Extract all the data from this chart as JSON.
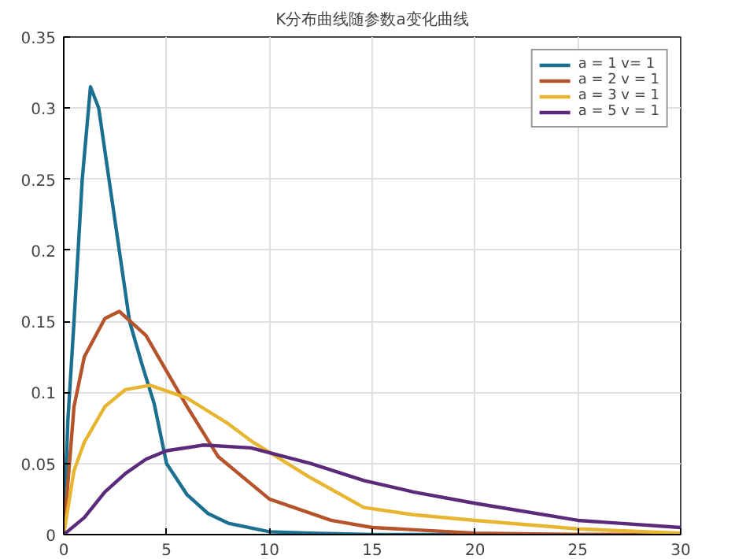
{
  "chart_data": {
    "type": "line",
    "title": "K分布曲线随参数a变化曲线",
    "xlim": [
      0,
      30
    ],
    "ylim": [
      0,
      0.35
    ],
    "xticks": [
      0,
      5,
      10,
      15,
      20,
      25,
      30
    ],
    "yticks": [
      0,
      0.05,
      0.1,
      0.15,
      0.2,
      0.25,
      0.3,
      0.35
    ],
    "grid": true,
    "legend": "top right",
    "line_style": "solid",
    "marker": "none",
    "series": [
      {
        "name": "a = 1 v= 1",
        "color": "#1b6f8f",
        "x": [
          0,
          0.2,
          0.5,
          0.9,
          1.3,
          1.7,
          2.2,
          2.7,
          3.2,
          3.8,
          4.4,
          5,
          6,
          7,
          8,
          10,
          12,
          15,
          20,
          25,
          30
        ],
        "values": [
          0,
          0.08,
          0.15,
          0.25,
          0.315,
          0.3,
          0.25,
          0.2,
          0.15,
          0.12,
          0.092,
          0.05,
          0.028,
          0.015,
          0.008,
          0.002,
          0.001,
          0,
          0,
          0,
          0
        ]
      },
      {
        "name": "a = 2 v = 1",
        "color": "#b5532a",
        "x": [
          0,
          0.5,
          1,
          2,
          2.7,
          4,
          5,
          6,
          7.5,
          10,
          13,
          15,
          20,
          25,
          30
        ],
        "values": [
          0,
          0.09,
          0.125,
          0.152,
          0.157,
          0.14,
          0.115,
          0.09,
          0.055,
          0.025,
          0.01,
          0.005,
          0.001,
          0,
          0
        ]
      },
      {
        "name": "a = 3 v = 1",
        "color": "#e8b530",
        "x": [
          0,
          0.5,
          1,
          2,
          3,
          4.2,
          6,
          8,
          9.1,
          12,
          14.6,
          17,
          20,
          25,
          30
        ],
        "values": [
          0,
          0.045,
          0.065,
          0.09,
          0.102,
          0.105,
          0.096,
          0.078,
          0.066,
          0.04,
          0.019,
          0.014,
          0.01,
          0.004,
          0.001
        ]
      },
      {
        "name": "a = 5 v = 1",
        "color": "#5b2a7a",
        "x": [
          0,
          1,
          2,
          3,
          4,
          5,
          6.8,
          9.1,
          12,
          14.6,
          17,
          20,
          25,
          30
        ],
        "values": [
          0,
          0.012,
          0.03,
          0.043,
          0.053,
          0.059,
          0.063,
          0.061,
          0.05,
          0.038,
          0.03,
          0.022,
          0.01,
          0.005
        ]
      }
    ]
  }
}
